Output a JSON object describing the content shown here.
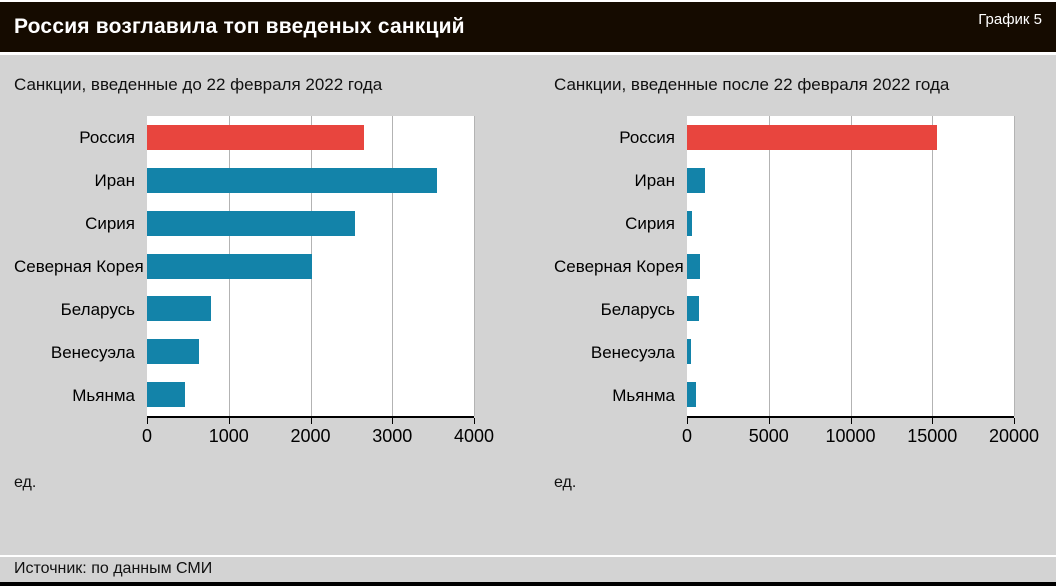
{
  "header": {
    "title": "Россия возглавила топ введеных санкций",
    "chart_number": "График 5"
  },
  "footer": {
    "source": "Источник: по данным СМИ"
  },
  "colors": {
    "highlight_bar": "#e8453e",
    "regular_bar": "#1383a9"
  },
  "chart_data": [
    {
      "type": "bar",
      "orientation": "horizontal",
      "subtitle": "Санкции, введенные до 22 февраля 2022 года",
      "unit_label": "ед.",
      "categories": [
        "Россия",
        "Иран",
        "Сирия",
        "Северная Корея",
        "Беларусь",
        "Венесуэла",
        "Мьянма"
      ],
      "values": [
        2650,
        3550,
        2550,
        2020,
        780,
        640,
        460
      ],
      "highlight_category": "Россия",
      "xlim": [
        0,
        4000
      ],
      "ticks": [
        0,
        1000,
        2000,
        3000,
        4000
      ],
      "tick_labels": [
        "0",
        "1000",
        "2000",
        "3000",
        "4000"
      ],
      "grid": true,
      "legend": false
    },
    {
      "type": "bar",
      "orientation": "horizontal",
      "subtitle": "Санкции, введенные после 22 февраля 2022 года",
      "unit_label": "ед.",
      "categories": [
        "Россия",
        "Иран",
        "Сирия",
        "Северная Корея",
        "Беларусь",
        "Венесуэла",
        "Мьянма"
      ],
      "values": [
        15300,
        1100,
        300,
        800,
        750,
        250,
        550
      ],
      "highlight_category": "Россия",
      "xlim": [
        0,
        20000
      ],
      "ticks": [
        0,
        5000,
        10000,
        15000,
        20000
      ],
      "tick_labels": [
        "0",
        "5000",
        "10000",
        "15000",
        "20000"
      ],
      "grid": true,
      "legend": false
    }
  ]
}
